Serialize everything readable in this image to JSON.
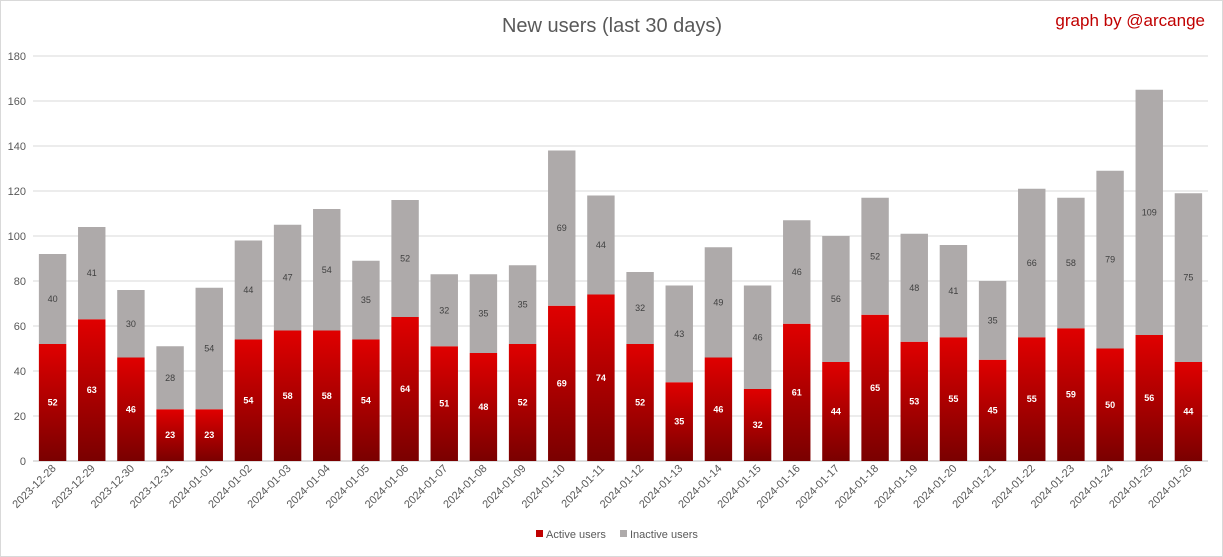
{
  "chart_data": {
    "type": "bar",
    "stacked": true,
    "title": "New users (last 30 days)",
    "credit": "graph by @arcange",
    "xlabel": "",
    "ylabel": "",
    "ylim": [
      0,
      180
    ],
    "yticks": [
      0,
      20,
      40,
      60,
      80,
      100,
      120,
      140,
      160,
      180
    ],
    "grid": true,
    "legend_position": "bottom",
    "categories": [
      "2023-12-28",
      "2023-12-29",
      "2023-12-30",
      "2023-12-31",
      "2024-01-01",
      "2024-01-02",
      "2024-01-03",
      "2024-01-04",
      "2024-01-05",
      "2024-01-06",
      "2024-01-07",
      "2024-01-08",
      "2024-01-09",
      "2024-01-10",
      "2024-01-11",
      "2024-01-12",
      "2024-01-13",
      "2024-01-14",
      "2024-01-15",
      "2024-01-16",
      "2024-01-17",
      "2024-01-18",
      "2024-01-19",
      "2024-01-20",
      "2024-01-21",
      "2024-01-22",
      "2024-01-23",
      "2024-01-24",
      "2024-01-25",
      "2024-01-26"
    ],
    "series": [
      {
        "name": "Active users",
        "color": "#c00000",
        "values": [
          52,
          63,
          46,
          23,
          23,
          54,
          58,
          58,
          54,
          64,
          51,
          48,
          52,
          69,
          74,
          52,
          35,
          46,
          32,
          61,
          44,
          65,
          53,
          55,
          45,
          55,
          59,
          50,
          56,
          44
        ]
      },
      {
        "name": "Inactive users",
        "color": "#aeaaaa",
        "values": [
          40,
          41,
          30,
          28,
          54,
          44,
          47,
          54,
          35,
          52,
          32,
          35,
          35,
          69,
          44,
          32,
          43,
          49,
          46,
          46,
          56,
          52,
          48,
          41,
          35,
          66,
          58,
          79,
          109,
          75
        ]
      }
    ]
  }
}
